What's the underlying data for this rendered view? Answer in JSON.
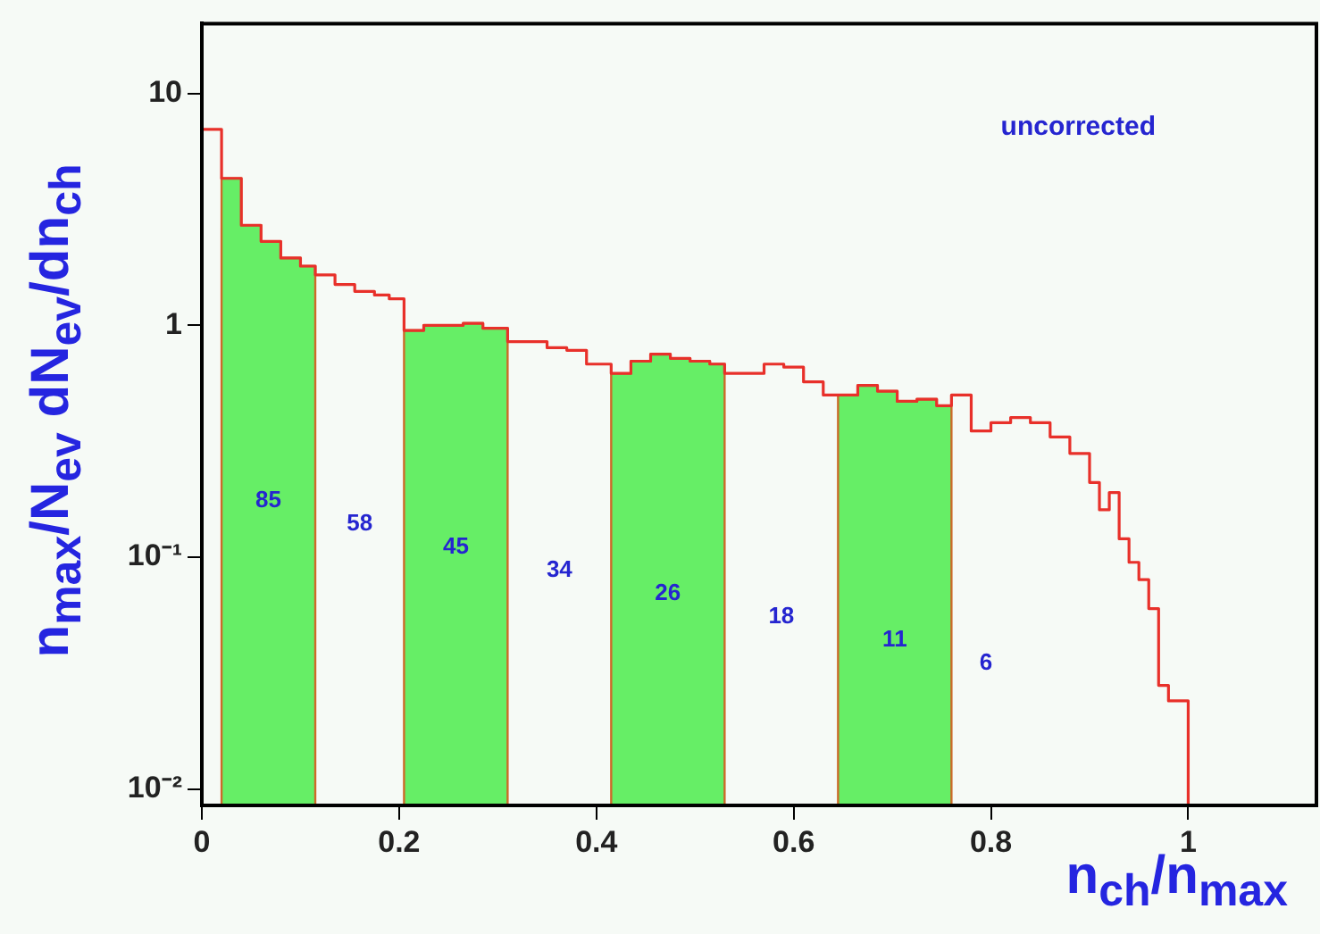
{
  "chart_data": {
    "type": "histogram",
    "xlabel": "n$_{ch}$/n$_{max}$",
    "ylabel": "n$_{max}$/N$_{ev}$ dN$_{ev}$/dn$_{ch}$",
    "bins": [
      0,
      0.02,
      0.04,
      0.06,
      0.08,
      0.1,
      0.115,
      0.135,
      0.155,
      0.175,
      0.19,
      0.205,
      0.225,
      0.245,
      0.265,
      0.285,
      0.31,
      0.33,
      0.35,
      0.37,
      0.39,
      0.415,
      0.435,
      0.455,
      0.475,
      0.495,
      0.515,
      0.53,
      0.55,
      0.57,
      0.59,
      0.61,
      0.63,
      0.645,
      0.665,
      0.685,
      0.705,
      0.725,
      0.745,
      0.76,
      0.78,
      0.8,
      0.82,
      0.84,
      0.86,
      0.88,
      0.9,
      0.91,
      0.92,
      0.93,
      0.94,
      0.95,
      0.96,
      0.97,
      0.98,
      0.99,
      1.0
    ],
    "series": [
      {
        "color": "#e8302a",
        "values": [
          7.0,
          4.3,
          2.7,
          2.3,
          1.95,
          1.8,
          1.65,
          1.5,
          1.4,
          1.35,
          1.3,
          0.95,
          1.0,
          1.0,
          1.02,
          0.97,
          0.85,
          0.85,
          0.8,
          0.78,
          0.68,
          0.62,
          0.7,
          0.75,
          0.72,
          0.7,
          0.68,
          0.62,
          0.62,
          0.68,
          0.66,
          0.57,
          0.5,
          0.5,
          0.55,
          0.52,
          0.47,
          0.48,
          0.45,
          0.5,
          0.35,
          0.38,
          0.4,
          0.38,
          0.33,
          0.28,
          0.21,
          0.16,
          0.19,
          0.12,
          0.095,
          0.08,
          0.06,
          0.028,
          0.024,
          0.024
        ]
      }
    ],
    "bands": [
      {
        "axis": "x",
        "from": 0.02,
        "to": 0.115,
        "color": "#66ee66"
      },
      {
        "axis": "x",
        "from": 0.205,
        "to": 0.31,
        "color": "#66ee66"
      },
      {
        "axis": "x",
        "from": 0.415,
        "to": 0.53,
        "color": "#66ee66"
      },
      {
        "axis": "x",
        "from": 0.645,
        "to": 0.76,
        "color": "#66ee66"
      }
    ],
    "annotations": [
      "uncorrected",
      "85",
      "58",
      "45",
      "34",
      "26",
      "18",
      "11",
      "6"
    ],
    "log": true,
    "xlim": [
      0,
      1.13
    ],
    "ylim": [
      0.0085,
      20
    ],
    "xticks": [
      0,
      0.2,
      0.4,
      0.6,
      0.8,
      1
    ],
    "yticks": [
      {
        "value": 0.01,
        "label": "10⁻²"
      },
      {
        "value": 0.1,
        "label": "10⁻¹"
      },
      1,
      10
    ]
  }
}
